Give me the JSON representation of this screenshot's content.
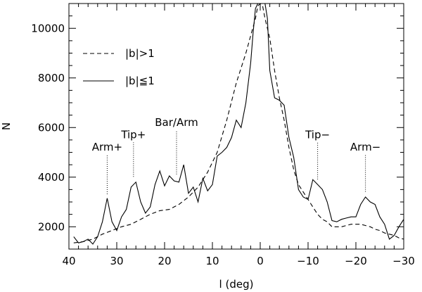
{
  "chart_data": {
    "type": "line",
    "xlabel": "l (deg)",
    "ylabel": "N",
    "xlim": [
      40,
      -30
    ],
    "ylim": [
      1100,
      11000
    ],
    "x_ticks": [
      40,
      30,
      20,
      10,
      0,
      -10,
      -20,
      -30
    ],
    "x_tick_labels": [
      "40",
      "30",
      "20",
      "10",
      "0",
      "−10",
      "−20",
      "−30"
    ],
    "y_ticks": [
      2000,
      4000,
      6000,
      8000,
      10000
    ],
    "y_tick_labels": [
      "2000",
      "4000",
      "6000",
      "8000",
      "10000"
    ],
    "grid": false,
    "legend_position": "upper-left",
    "series": [
      {
        "name": "|b|>1",
        "style": "dashed",
        "x": [
          39,
          37,
          35,
          33,
          31,
          29,
          27,
          25,
          23,
          21,
          19,
          17,
          15,
          13,
          11,
          9,
          7,
          5,
          3,
          2,
          1,
          0.5,
          0,
          -0.5,
          -1,
          -2,
          -3,
          -4,
          -5,
          -6,
          -7,
          -8,
          -9,
          -10,
          -11,
          -12,
          -13,
          -14,
          -15,
          -16,
          -17,
          -18,
          -19,
          -20,
          -21,
          -22,
          -23,
          -24,
          -25,
          -26,
          -27,
          -28,
          -29,
          -30
        ],
        "y": [
          1350,
          1400,
          1500,
          1700,
          1850,
          2000,
          2100,
          2300,
          2500,
          2650,
          2700,
          2900,
          3200,
          3600,
          4200,
          5000,
          6300,
          7800,
          9000,
          9700,
          10400,
          10900,
          11000,
          10900,
          10400,
          9600,
          8300,
          7200,
          6300,
          5200,
          4300,
          3700,
          3400,
          3100,
          2800,
          2500,
          2300,
          2200,
          2000,
          2000,
          2000,
          2050,
          2100,
          2100,
          2100,
          2050,
          2000,
          1900,
          1850,
          1750,
          1700,
          1650,
          1550,
          1500
        ]
      },
      {
        "name": "|b|≦1",
        "style": "solid",
        "x": [
          39,
          38,
          37,
          36,
          35,
          34,
          33,
          32,
          31,
          30,
          29,
          28,
          27,
          26,
          25,
          24,
          23,
          22,
          21,
          20,
          19,
          18,
          17,
          16,
          15,
          14,
          13,
          12,
          11,
          10,
          9,
          8,
          7,
          6,
          5,
          4,
          3,
          2,
          1.5,
          1,
          0.5,
          0,
          -0.5,
          -1,
          -1.5,
          -2,
          -3,
          -4,
          -5,
          -6,
          -7,
          -8,
          -9,
          -10,
          -11,
          -12,
          -13,
          -14,
          -15,
          -16,
          -17,
          -18,
          -19,
          -20,
          -21,
          -22,
          -23,
          -24,
          -25,
          -26,
          -27,
          -28,
          -29,
          -30
        ],
        "y": [
          1600,
          1350,
          1400,
          1500,
          1300,
          1600,
          2200,
          3150,
          2200,
          1850,
          2400,
          2700,
          3600,
          3800,
          3000,
          2550,
          2800,
          3700,
          4250,
          3650,
          4050,
          3850,
          3800,
          4500,
          3350,
          3600,
          3000,
          3950,
          3450,
          3700,
          4850,
          5000,
          5200,
          5600,
          6300,
          6000,
          7000,
          8600,
          9800,
          10800,
          11000,
          11000,
          11000,
          11000,
          10400,
          8300,
          7200,
          7100,
          6900,
          5600,
          4800,
          3500,
          3200,
          3100,
          3900,
          3700,
          3500,
          3000,
          2250,
          2200,
          2300,
          2350,
          2400,
          2400,
          2900,
          3200,
          3000,
          2900,
          2400,
          2100,
          1500,
          1650,
          2000,
          2300
        ]
      }
    ],
    "annotations": [
      {
        "label": "Arm+",
        "x": 32,
        "y_from": 3200,
        "y_to": 4900
      },
      {
        "label": "Tip+",
        "x": 26.5,
        "y_from": 3900,
        "y_to": 5400
      },
      {
        "label": "Bar/Arm",
        "x": 17.5,
        "y_from": 4000,
        "y_to": 5900
      },
      {
        "label": "Tip−",
        "x": -12,
        "y_from": 3800,
        "y_to": 5400
      },
      {
        "label": "Arm−",
        "x": -22,
        "y_from": 3300,
        "y_to": 4900
      }
    ]
  }
}
